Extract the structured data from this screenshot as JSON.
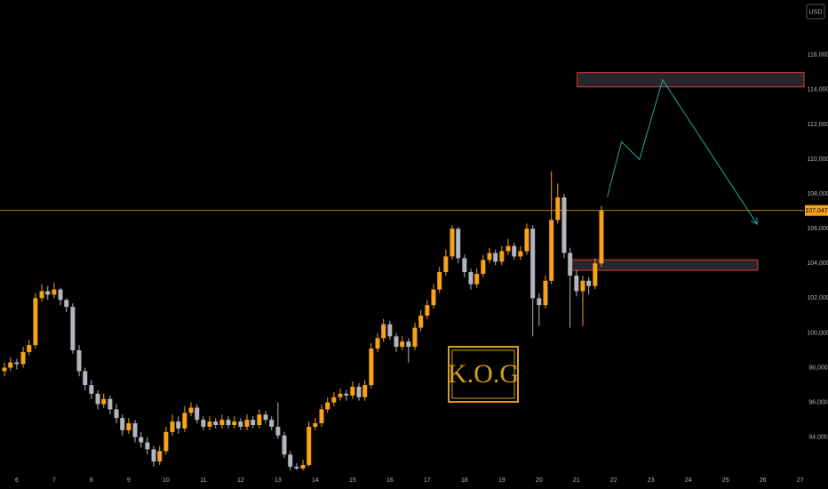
{
  "chart_data": {
    "type": "candlestick",
    "currency": "USD",
    "watermark": "K.O.G",
    "up_color": "#f7a21b",
    "down_color": "#b2b5be",
    "grid": false,
    "xlim": [
      5.55,
      27.1
    ],
    "ylim": [
      92040,
      119160
    ],
    "xticks": [
      6,
      7,
      8,
      9,
      10,
      11,
      12,
      13,
      14,
      15,
      16,
      17,
      18,
      19,
      20,
      21,
      22,
      23,
      24,
      25,
      26,
      27
    ],
    "yticks": [
      {
        "value": 94000,
        "label": "94,000"
      },
      {
        "value": 96000,
        "label": "96,000"
      },
      {
        "value": 98000,
        "label": "98,000"
      },
      {
        "value": 100000,
        "label": "100,000"
      },
      {
        "value": 102000,
        "label": "102,000"
      },
      {
        "value": 104000,
        "label": "104,000"
      },
      {
        "value": 106000,
        "label": "106,000"
      },
      {
        "value": 108000,
        "label": "108,000"
      },
      {
        "value": 110000,
        "label": "110,000"
      },
      {
        "value": 112000,
        "label": "112,000"
      },
      {
        "value": 114000,
        "label": "114,000"
      },
      {
        "value": 116000,
        "label": "116,000"
      }
    ],
    "last_price": {
      "value": 107047,
      "label": "107,047"
    },
    "x": [
      5.67,
      5.83,
      6,
      6.17,
      6.33,
      6.5,
      6.67,
      6.83,
      7,
      7.17,
      7.33,
      7.5,
      7.67,
      7.83,
      8,
      8.17,
      8.33,
      8.5,
      8.67,
      8.83,
      9,
      9.17,
      9.33,
      9.5,
      9.67,
      9.83,
      10,
      10.17,
      10.33,
      10.5,
      10.67,
      10.83,
      11,
      11.17,
      11.33,
      11.5,
      11.67,
      11.83,
      12,
      12.17,
      12.33,
      12.5,
      12.67,
      12.83,
      13,
      13.17,
      13.33,
      13.5,
      13.67,
      13.83,
      14,
      14.17,
      14.33,
      14.5,
      14.67,
      14.83,
      15,
      15.17,
      15.33,
      15.5,
      15.67,
      15.83,
      16,
      16.17,
      16.33,
      16.5,
      16.67,
      16.83,
      17,
      17.17,
      17.33,
      17.5,
      17.67,
      17.83,
      18,
      18.17,
      18.33,
      18.5,
      18.67,
      18.83,
      19,
      19.17,
      19.33,
      19.5,
      19.67,
      19.83,
      20,
      20.17,
      20.33,
      20.5,
      20.67,
      20.83,
      21,
      21.17,
      21.33,
      21.5,
      21.67
    ],
    "open": [
      97800,
      98000,
      98300,
      98200,
      98900,
      99300,
      102000,
      102400,
      102200,
      102500,
      101900,
      101500,
      99000,
      97800,
      97000,
      96500,
      95900,
      96200,
      95600,
      95100,
      94400,
      94800,
      94000,
      93700,
      93300,
      92600,
      93200,
      94300,
      94900,
      94500,
      95400,
      95700,
      95000,
      94600,
      94900,
      94700,
      95000,
      94700,
      94900,
      94600,
      95000,
      94700,
      95300,
      95000,
      94600,
      94100,
      93000,
      92300,
      92200,
      92400,
      94600,
      94800,
      95600,
      96000,
      96300,
      96500,
      96400,
      96900,
      96300,
      97000,
      99100,
      99700,
      100500,
      99800,
      99200,
      99500,
      99200,
      100300,
      101000,
      101600,
      102500,
      103500,
      104400,
      106000,
      104300,
      103500,
      102800,
      103400,
      104200,
      104600,
      104100,
      104700,
      105000,
      104400,
      104700,
      106000,
      102000,
      101600,
      103000,
      106500,
      107800,
      104600,
      103300,
      102400,
      103000,
      102700,
      104000
    ],
    "high": [
      98300,
      98600,
      98500,
      99200,
      99600,
      102300,
      102800,
      102700,
      102900,
      102600,
      102000,
      101700,
      99300,
      98000,
      97300,
      96700,
      96500,
      96400,
      95900,
      95300,
      95100,
      95000,
      94300,
      94000,
      93500,
      93500,
      94600,
      95300,
      95200,
      95800,
      96000,
      95900,
      95200,
      95200,
      95100,
      95300,
      95200,
      95200,
      95100,
      95300,
      95200,
      95600,
      95500,
      95200,
      96000,
      94300,
      93200,
      92500,
      92700,
      94900,
      95100,
      95900,
      96300,
      96600,
      96800,
      96700,
      97200,
      97100,
      97300,
      99400,
      100000,
      100800,
      100700,
      100000,
      99800,
      99700,
      100600,
      101300,
      101900,
      102800,
      103800,
      104800,
      106200,
      106100,
      104500,
      103700,
      103700,
      104500,
      104900,
      104800,
      105000,
      105400,
      105200,
      105000,
      106300,
      106200,
      102300,
      103300,
      109300,
      108600,
      108000,
      104900,
      103600,
      103300,
      103200,
      104300,
      107300
    ],
    "low": [
      97500,
      97800,
      97900,
      98000,
      98700,
      99100,
      101800,
      101900,
      102000,
      101600,
      101200,
      98800,
      97500,
      96700,
      96200,
      95600,
      95700,
      95300,
      94800,
      94100,
      94200,
      93700,
      93400,
      93000,
      92300,
      92400,
      93000,
      94100,
      94200,
      94300,
      95200,
      94800,
      94400,
      94400,
      94500,
      94500,
      94500,
      94500,
      94400,
      94400,
      94500,
      94500,
      94800,
      94400,
      93900,
      92800,
      92100,
      92100,
      92100,
      92300,
      94400,
      94600,
      95400,
      95800,
      96100,
      96100,
      96200,
      96100,
      96100,
      96800,
      98900,
      99500,
      99600,
      98900,
      99000,
      98300,
      99000,
      100100,
      100800,
      101400,
      102300,
      103300,
      104200,
      104000,
      103200,
      102500,
      102600,
      103200,
      104000,
      103900,
      103900,
      104500,
      104200,
      104200,
      104500,
      99800,
      100400,
      101400,
      102800,
      106300,
      104300,
      100300,
      102100,
      100400,
      102200,
      102500,
      103800
    ],
    "close": [
      98000,
      98300,
      98200,
      98900,
      99300,
      102000,
      102400,
      102200,
      102500,
      101900,
      101500,
      99000,
      97800,
      97000,
      96500,
      95900,
      96200,
      95600,
      95100,
      94400,
      94800,
      94000,
      93700,
      93300,
      92600,
      93200,
      94300,
      94900,
      94500,
      95400,
      95700,
      95000,
      94600,
      94900,
      94700,
      95000,
      94700,
      94900,
      94600,
      95000,
      94700,
      95300,
      95000,
      94600,
      94100,
      93000,
      92300,
      92200,
      92400,
      94600,
      94800,
      95600,
      96000,
      96300,
      96500,
      96400,
      96900,
      96300,
      97000,
      99100,
      99700,
      100500,
      99800,
      99200,
      99500,
      99200,
      100300,
      101000,
      101600,
      102500,
      103500,
      104400,
      106000,
      104300,
      103500,
      102800,
      103400,
      104200,
      104600,
      104100,
      104700,
      105000,
      104400,
      104700,
      106000,
      102000,
      101600,
      103000,
      106500,
      107800,
      104600,
      103300,
      102400,
      103000,
      102700,
      104000,
      107047
    ],
    "zones": [
      {
        "x": [
          21.02,
          27.1
        ],
        "y": [
          114160,
          114980
        ]
      },
      {
        "x": [
          20.79,
          25.86
        ],
        "y": [
          103600,
          104210
        ]
      }
    ],
    "projection": {
      "color": "#26a69a",
      "x": [
        21.83,
        22.21,
        22.69,
        23.31,
        25.83
      ],
      "y": [
        107840,
        111000,
        109980,
        114570,
        106300
      ]
    }
  }
}
